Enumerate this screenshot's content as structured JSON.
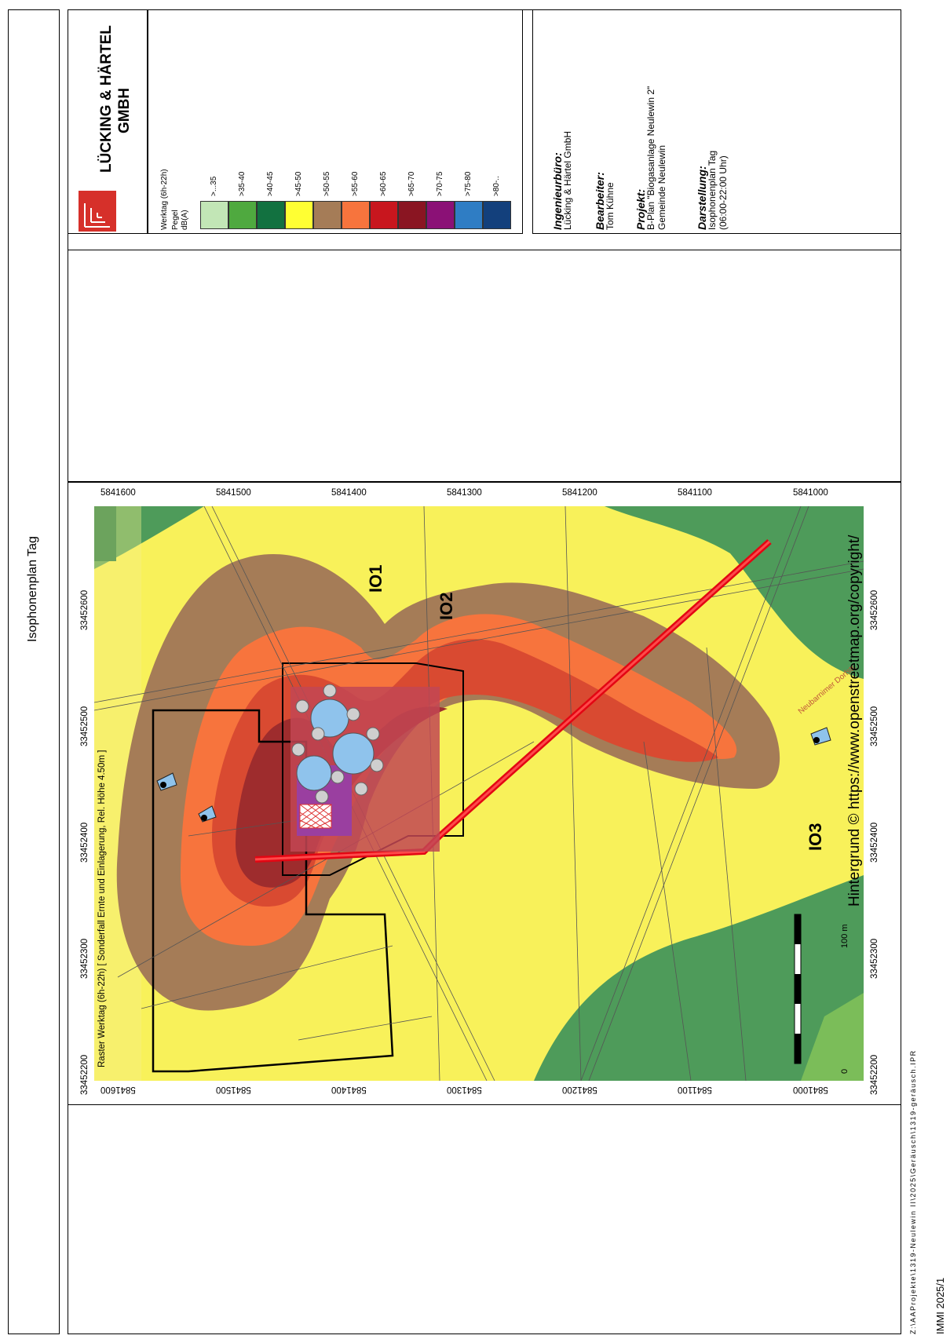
{
  "page": {
    "title": "Isophonenplan Tag",
    "file_path": "Z:\\AAProjekte\\1319-Neulewin II\\2025\\Geräusch\\1319-geräusch.IPR",
    "software": "IMMI 2025/1"
  },
  "company": {
    "name_line1": "LÜCKING & HÄRTEL",
    "name_line2": "GMBH",
    "logo_color": "#d6302a"
  },
  "legend": {
    "title_line1": "Werktag (6h-22h)",
    "title_line2": "Pegel",
    "title_line3": "dB(A)",
    "classes": [
      {
        "label": ">...35",
        "color": "#c2e6b6"
      },
      {
        "label": ">35-40",
        "color": "#4fa93f"
      },
      {
        "label": ">40-45",
        "color": "#127140"
      },
      {
        "label": ">45-50",
        "color": "#ffff33"
      },
      {
        "label": ">50-55",
        "color": "#a57c57"
      },
      {
        "label": ">55-60",
        "color": "#f7743d"
      },
      {
        "label": ">60-65",
        "color": "#c8161e"
      },
      {
        "label": ">65-70",
        "color": "#8a1522"
      },
      {
        "label": ">70-75",
        "color": "#8b1176"
      },
      {
        "label": ">75-80",
        "color": "#2f7dc4"
      },
      {
        "label": ">80-..",
        "color": "#13407c"
      }
    ]
  },
  "info": {
    "office_label": "Ingenieurbüro:",
    "office_value": "Lücking & Härtel GmbH",
    "editor_label": "Bearbeiter:",
    "editor_value": "Tom Kühne",
    "project_label": "Projekt:",
    "project_value1": "B-Plan \"Biogasanlage Neulewin 2\"",
    "project_value2": "Gemeinde Neulewin",
    "display_label": "Darstellung:",
    "display_value1": "Isophonenplan Tag",
    "display_value2": "(06:00-22:00 Uhr)"
  },
  "map": {
    "raster_caption": "Raster Werktag (6h-22h) [ Sonderfall Ernte und Einlagerung, Rel. Höhe  4.50m ]",
    "attribution": "Hintergrund © https://www.openstreetmap.org/copyright/",
    "scale_start": "0",
    "scale_end": "100 m",
    "receivers": [
      "IO1",
      "IO2",
      "IO3"
    ],
    "street_label": "Neubarnimer Dorfstr.",
    "x_ticks": [
      "33452200",
      "33452300",
      "33452400",
      "33452500",
      "33452600"
    ],
    "y_ticks": [
      "5841000",
      "5841100",
      "5841200",
      "5841300",
      "5841400",
      "5841500",
      "5841600"
    ]
  }
}
